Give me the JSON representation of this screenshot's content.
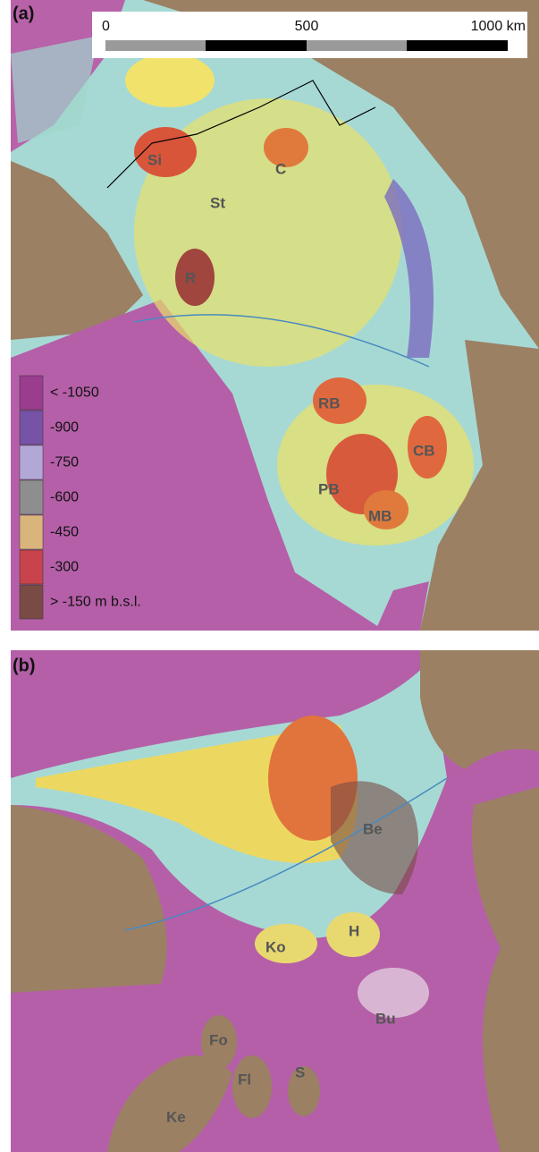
{
  "panel_a": {
    "label": "(a)",
    "scale_bar": {
      "ticks": [
        0,
        500,
        {
          "value": 1000,
          "label": "1000 km"
        }
      ]
    },
    "legend": [
      {
        "label": "< -1050",
        "color": "#9a3d8e"
      },
      {
        "label": "-900",
        "color": "#7653a6"
      },
      {
        "label": "-750",
        "color": "#b2a8d8"
      },
      {
        "label": "-600",
        "color": "#8e8e8e"
      },
      {
        "label": "-450",
        "color": "#d9b57c"
      },
      {
        "label": "-300",
        "color": "#c8434c"
      },
      {
        "label": "> -150 m b.s.l.",
        "color": "#7a4b45"
      }
    ],
    "regions": [
      "Si",
      "St",
      "C",
      "R",
      "RB",
      "PB",
      "CB",
      "MB"
    ]
  },
  "panel_b": {
    "label": "(b)",
    "regions": [
      "Be",
      "H",
      "Ko",
      "Bu",
      "Fo",
      "Fl",
      "S",
      "Ke"
    ]
  }
}
